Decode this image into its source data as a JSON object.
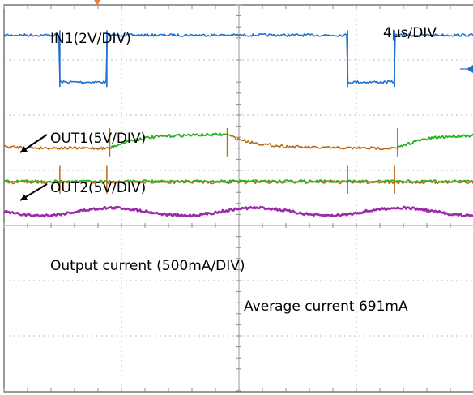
{
  "chart_data": {
    "type": "line",
    "title": "",
    "timebase": "4μs/DIV",
    "grid": true,
    "divisions": {
      "x": 8,
      "y": 7
    },
    "trigger_marker_color": "#f08030",
    "colors": {
      "in1": "#1f6fd0",
      "out1": "#b86a12",
      "out2": "#22b422",
      "current": "#9a2aa8"
    },
    "channels": [
      {
        "name": "IN1",
        "label": "IN1(2V/DIV)",
        "shape": "square",
        "period_us": 9.8,
        "first_fall_us": 1.9,
        "low_us": 1.6,
        "high_level_div": 0.55,
        "low_level_div": 1.4
      },
      {
        "name": "OUT1",
        "label": "OUT1(5V/DIV)",
        "shape": "bridge-exp",
        "period_us": 9.8,
        "first_rise_us": 3.6,
        "high_us": 4.0,
        "base_level_div": 2.6,
        "peak_rise_div": 0.25
      },
      {
        "name": "OUT2",
        "label": "OUT2(5V/DIV)",
        "shape": "bridge-flat",
        "level_div": 3.2,
        "spike_div": 0.28
      },
      {
        "name": "Output current",
        "label": "Output current (500mA/DIV)",
        "shape": "ripple",
        "level_div": 3.75,
        "ripple_div": 0.07,
        "period_us": 4.9
      }
    ],
    "annotations": {
      "average_current": "Average current 691mA"
    }
  }
}
